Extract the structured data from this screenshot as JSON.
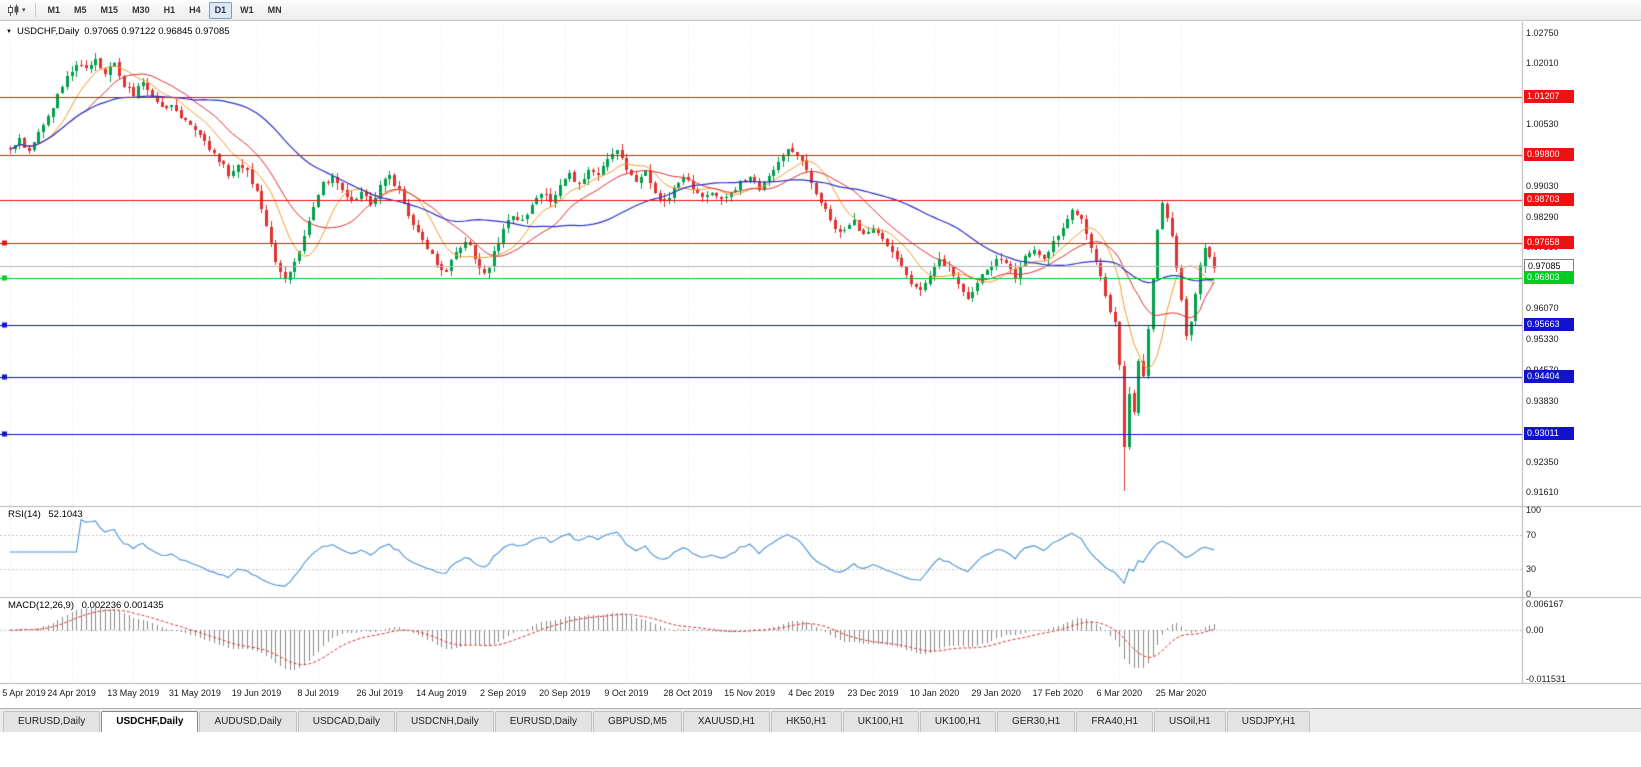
{
  "toolbar": {
    "chart_type_icon": "candlestick-chart",
    "dropdown_icon": "▾",
    "timeframes": [
      "M1",
      "M5",
      "M15",
      "M30",
      "H1",
      "H4",
      "D1",
      "W1",
      "MN"
    ],
    "active_timeframe": "D1"
  },
  "chart": {
    "menu_icon": "▼",
    "title": "USDCHF,Daily",
    "ohlc_text": "0.97065 0.97122 0.96845 0.97085"
  },
  "indicators": {
    "rsi": {
      "name": "RSI(14)",
      "value": "52.1043"
    },
    "macd": {
      "name": "MACD(12,26,9)",
      "value": "0.002236 0.001435"
    }
  },
  "chart_data": {
    "type": "candlestick",
    "symbol": "USDCHF",
    "period": "Daily",
    "last_ohlc": {
      "open": 0.97065,
      "high": 0.97122,
      "low": 0.96845,
      "close": 0.97085
    },
    "candles_count": 255,
    "low_extreme": 0.9163,
    "high_extreme": 1.0226,
    "price_axis": {
      "top_price": 1.0275,
      "bottom_price": 0.9161
    },
    "y_axis_labels": [
      "1.02750",
      "1.02010",
      "1.00530",
      "0.99030",
      "0.98290",
      "0.97550",
      "0.96070",
      "0.95330",
      "0.94570",
      "0.93830",
      "0.92350",
      "0.91610"
    ],
    "x_labels": [
      "5 Apr 2019",
      "24 Apr 2019",
      "13 May 2019",
      "31 May 2019",
      "19 Jun 2019",
      "8 Jul 2019",
      "26 Jul 2019",
      "14 Aug 2019",
      "2 Sep 2019",
      "20 Sep 2019",
      "9 Oct 2019",
      "28 Oct 2019",
      "15 Nov 2019",
      "4 Dec 2019",
      "23 Dec 2019",
      "10 Jan 2020",
      "29 Jan 2020",
      "17 Feb 2020",
      "6 Mar 2020",
      "25 Mar 2020"
    ],
    "levels": [
      {
        "price": 1.01207,
        "label": "1.01207",
        "color": "#ee1111",
        "anchor": false
      },
      {
        "price": 0.998,
        "label": "0.99800",
        "color": "#ee1111",
        "anchor": false
      },
      {
        "price": 0.98703,
        "label": "0.98703",
        "color": "#ee1111",
        "anchor": false
      },
      {
        "price": 0.97658,
        "label": "0.97658",
        "color": "#ee1111",
        "anchor": true
      },
      {
        "price": 0.96803,
        "label": "0.96803",
        "color": "#00cc22",
        "anchor": true
      },
      {
        "price": 0.95663,
        "label": "0.95663",
        "color": "#1212cc",
        "anchor": true
      },
      {
        "price": 0.94404,
        "label": "0.94404",
        "color": "#1212cc",
        "anchor": true
      },
      {
        "price": 0.93011,
        "label": "0.93011",
        "color": "#1212cc",
        "anchor": true
      }
    ],
    "current_price": {
      "value": 0.97085,
      "label": "0.97085"
    },
    "moving_averages": [
      {
        "name": "fast-ma",
        "period": 9,
        "color": "#f0a030"
      },
      {
        "name": "mid-ma",
        "period": 17,
        "color": "#e03232"
      },
      {
        "name": "slow-ma",
        "period": 40,
        "color": "#2a35c8"
      }
    ],
    "rsi": {
      "period": 14,
      "axis_labels": [
        "100",
        "70",
        "30",
        "0"
      ],
      "upper_level": 70,
      "lower_level": 30
    },
    "macd": {
      "fast": 12,
      "slow": 26,
      "signal": 9,
      "axis_labels": [
        "0.006167",
        "0.00",
        "-0.011531"
      ],
      "range": [
        -0.011531,
        0.006167
      ]
    },
    "colors": {
      "up": "#00a14b",
      "down": "#e03232",
      "grid": "#e7e7e7",
      "divider": "#b4b4b4",
      "rsi_line": "#4f94d4",
      "rsi_levels": "#c8c8c8",
      "macd_hist": "#8c8c8c",
      "macd_signal": "#e03232",
      "current_line": "#b5b5b5"
    },
    "price_anchors": [
      [
        0,
        0.9998
      ],
      [
        2,
        1.0012
      ],
      [
        4,
        0.9992
      ],
      [
        6,
        1.0035
      ],
      [
        8,
        1.007
      ],
      [
        10,
        1.012
      ],
      [
        12,
        1.0165
      ],
      [
        14,
        1.02
      ],
      [
        16,
        1.0185
      ],
      [
        18,
        1.0215
      ],
      [
        20,
        1.0175
      ],
      [
        22,
        1.02
      ],
      [
        24,
        1.015
      ],
      [
        26,
        1.0125
      ],
      [
        28,
        1.0155
      ],
      [
        30,
        1.0125
      ],
      [
        32,
        1.009
      ],
      [
        34,
        1.0105
      ],
      [
        36,
        1.0075
      ],
      [
        38,
        1.0055
      ],
      [
        40,
        1.003
      ],
      [
        42,
        0.9995
      ],
      [
        44,
        0.9965
      ],
      [
        46,
        0.9935
      ],
      [
        48,
        0.995
      ],
      [
        50,
        0.9935
      ],
      [
        52,
        0.989
      ],
      [
        54,
        0.981
      ],
      [
        56,
        0.972
      ],
      [
        58,
        0.968
      ],
      [
        60,
        0.972
      ],
      [
        62,
        0.978
      ],
      [
        64,
        0.985
      ],
      [
        66,
        0.9905
      ],
      [
        68,
        0.9925
      ],
      [
        70,
        0.989
      ],
      [
        72,
        0.9865
      ],
      [
        74,
        0.989
      ],
      [
        76,
        0.986
      ],
      [
        78,
        0.99
      ],
      [
        80,
        0.993
      ],
      [
        82,
        0.989
      ],
      [
        84,
        0.983
      ],
      [
        86,
        0.979
      ],
      [
        88,
        0.9755
      ],
      [
        90,
        0.9715
      ],
      [
        92,
        0.9695
      ],
      [
        94,
        0.9745
      ],
      [
        96,
        0.9775
      ],
      [
        98,
        0.9735
      ],
      [
        100,
        0.9685
      ],
      [
        102,
        0.974
      ],
      [
        104,
        0.9795
      ],
      [
        106,
        0.9835
      ],
      [
        108,
        0.9815
      ],
      [
        110,
        0.9865
      ],
      [
        112,
        0.989
      ],
      [
        114,
        0.987
      ],
      [
        116,
        0.99
      ],
      [
        118,
        0.993
      ],
      [
        120,
        0.9905
      ],
      [
        122,
        0.9945
      ],
      [
        124,
        0.9925
      ],
      [
        126,
        0.997
      ],
      [
        128,
        0.9985
      ],
      [
        130,
        0.9945
      ],
      [
        132,
        0.9915
      ],
      [
        134,
        0.9935
      ],
      [
        136,
        0.989
      ],
      [
        138,
        0.9865
      ],
      [
        140,
        0.9895
      ],
      [
        142,
        0.9925
      ],
      [
        144,
        0.99
      ],
      [
        146,
        0.987
      ],
      [
        148,
        0.989
      ],
      [
        150,
        0.9865
      ],
      [
        153,
        0.99
      ],
      [
        156,
        0.9925
      ],
      [
        158,
        0.9895
      ],
      [
        160,
        0.9935
      ],
      [
        162,
        0.9965
      ],
      [
        164,
        0.999
      ],
      [
        166,
        0.998
      ],
      [
        168,
        0.9945
      ],
      [
        170,
        0.989
      ],
      [
        172,
        0.9845
      ],
      [
        174,
        0.9805
      ],
      [
        176,
        0.979
      ],
      [
        178,
        0.982
      ],
      [
        180,
        0.9785
      ],
      [
        182,
        0.9805
      ],
      [
        184,
        0.977
      ],
      [
        186,
        0.9745
      ],
      [
        188,
        0.9705
      ],
      [
        190,
        0.9668
      ],
      [
        192,
        0.9652
      ],
      [
        194,
        0.969
      ],
      [
        196,
        0.9725
      ],
      [
        198,
        0.97
      ],
      [
        200,
        0.9665
      ],
      [
        202,
        0.9635
      ],
      [
        204,
        0.967
      ],
      [
        206,
        0.97
      ],
      [
        208,
        0.973
      ],
      [
        210,
        0.9712
      ],
      [
        212,
        0.9685
      ],
      [
        214,
        0.973
      ],
      [
        216,
        0.9748
      ],
      [
        218,
        0.9725
      ],
      [
        220,
        0.9768
      ],
      [
        222,
        0.98
      ],
      [
        224,
        0.9848
      ],
      [
        226,
        0.982
      ],
      [
        228,
        0.9752
      ],
      [
        230,
        0.968
      ],
      [
        232,
        0.96
      ],
      [
        233,
        0.9578
      ],
      [
        234,
        0.947
      ],
      [
        235,
        0.927
      ],
      [
        236,
        0.94
      ],
      [
        237,
        0.935
      ],
      [
        238,
        0.948
      ],
      [
        239,
        0.944
      ],
      [
        240,
        0.956
      ],
      [
        241,
        0.968
      ],
      [
        242,
        0.979
      ],
      [
        243,
        0.9868
      ],
      [
        244,
        0.983
      ],
      [
        245,
        0.978
      ],
      [
        246,
        0.97
      ],
      [
        247,
        0.962
      ],
      [
        248,
        0.954
      ],
      [
        249,
        0.9575
      ],
      [
        250,
        0.9645
      ],
      [
        251,
        0.9705
      ],
      [
        252,
        0.976
      ],
      [
        253,
        0.973
      ],
      [
        254,
        0.9709
      ]
    ]
  },
  "tabs": [
    {
      "label": "EURUSD,Daily",
      "active": false
    },
    {
      "label": "USDCHF,Daily",
      "active": true
    },
    {
      "label": "AUDUSD,Daily",
      "active": false
    },
    {
      "label": "USDCAD,Daily",
      "active": false
    },
    {
      "label": "USDCNH,Daily",
      "active": false
    },
    {
      "label": "EURUSD,Daily",
      "active": false
    },
    {
      "label": "GBPUSD,M5",
      "active": false
    },
    {
      "label": "XAUUSD,H1",
      "active": false
    },
    {
      "label": "HK50,H1",
      "active": false
    },
    {
      "label": "UK100,H1",
      "active": false
    },
    {
      "label": "UK100,H1",
      "active": false
    },
    {
      "label": "GER30,H1",
      "active": false
    },
    {
      "label": "FRA40,H1",
      "active": false
    },
    {
      "label": "USOil,H1",
      "active": false
    },
    {
      "label": "USDJPY,H1",
      "active": false
    }
  ]
}
